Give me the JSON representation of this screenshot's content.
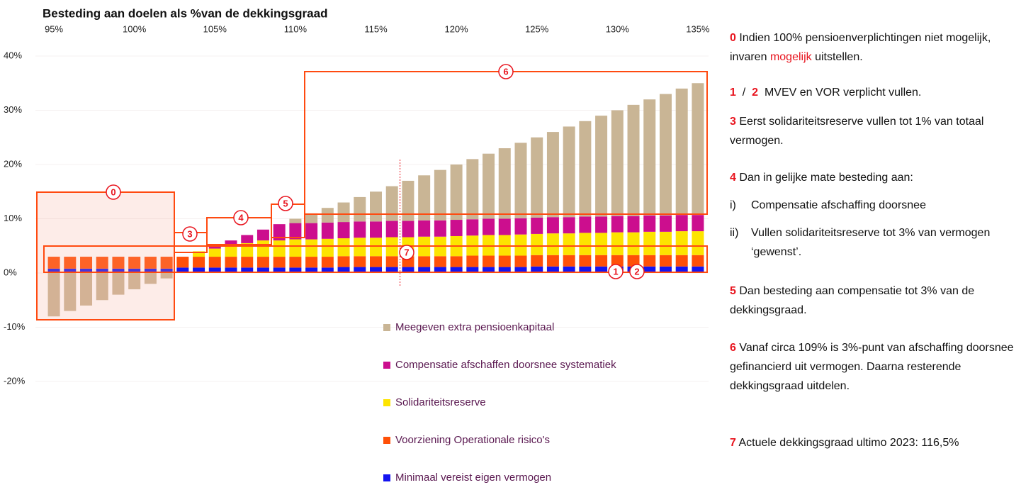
{
  "chart_data": {
    "type": "bar",
    "title": "Besteding aan doelen als %van de dekkingsgraad",
    "x": [
      95,
      96,
      97,
      98,
      99,
      100,
      101,
      102,
      103,
      104,
      105,
      106,
      107,
      108,
      109,
      110,
      111,
      112,
      113,
      114,
      115,
      116,
      117,
      118,
      119,
      120,
      121,
      122,
      123,
      124,
      125,
      126,
      127,
      128,
      129,
      130,
      131,
      132,
      133,
      134,
      135
    ],
    "xlim": [
      93.5,
      136.5
    ],
    "xticks": [
      {
        "value": 95,
        "label": "95%"
      },
      {
        "value": 100,
        "label": "100%"
      },
      {
        "value": 105,
        "label": "105%"
      },
      {
        "value": 110,
        "label": "110%"
      },
      {
        "value": 115,
        "label": "115%"
      },
      {
        "value": 120,
        "label": "120%"
      },
      {
        "value": 125,
        "label": "125%"
      },
      {
        "value": 130,
        "label": "130%"
      },
      {
        "value": 135,
        "label": "135%"
      }
    ],
    "ylim": [
      -20,
      40
    ],
    "yticks": [
      {
        "value": 40,
        "label": "40%"
      },
      {
        "value": 30,
        "label": "30%"
      },
      {
        "value": 20,
        "label": "20%"
      },
      {
        "value": 10,
        "label": "10%"
      },
      {
        "value": 0,
        "label": "0%"
      },
      {
        "value": -10,
        "label": "-10%"
      },
      {
        "value": -20,
        "label": "-20%"
      }
    ],
    "grid": true,
    "stacked": true,
    "series": [
      {
        "name": "Minimaal vereist eigen vermogen",
        "color": "#1414f0",
        "values": [
          0.8,
          0.8,
          0.8,
          0.8,
          0.8,
          0.8,
          0.8,
          0.8,
          1.0,
          1.0,
          1.0,
          1.0,
          1.0,
          1.0,
          1.0,
          1.0,
          1.0,
          1.0,
          1.1,
          1.1,
          1.1,
          1.1,
          1.1,
          1.1,
          1.1,
          1.1,
          1.1,
          1.1,
          1.1,
          1.1,
          1.2,
          1.2,
          1.2,
          1.2,
          1.2,
          1.2,
          1.2,
          1.2,
          1.2,
          1.2,
          1.2
        ]
      },
      {
        "name": "Voorziening Operationale risico's",
        "color": "#ff5008",
        "values": [
          2.2,
          2.2,
          2.2,
          2.2,
          2.2,
          2.2,
          2.2,
          2.2,
          2.0,
          2.0,
          2.0,
          2.0,
          2.0,
          2.0,
          2.0,
          2.0,
          2.0,
          2.0,
          2.0,
          2.0,
          2.0,
          2.0,
          2.0,
          2.0,
          2.0,
          2.0,
          2.1,
          2.1,
          2.1,
          2.1,
          2.1,
          2.1,
          2.1,
          2.1,
          2.1,
          2.1,
          2.1,
          2.1,
          2.1,
          2.1,
          2.1
        ]
      },
      {
        "name": "Solidariteitsreserve",
        "color": "#fde400",
        "values": [
          0,
          0,
          0,
          0,
          0,
          0,
          0,
          0,
          0,
          1,
          1.5,
          2,
          2.5,
          3,
          3,
          3.2,
          3.2,
          3.3,
          3.3,
          3.4,
          3.4,
          3.5,
          3.5,
          3.6,
          3.6,
          3.7,
          3.7,
          3.8,
          3.8,
          3.9,
          3.9,
          4.0,
          4.0,
          4.1,
          4.1,
          4.2,
          4.2,
          4.3,
          4.3,
          4.4,
          4.4
        ]
      },
      {
        "name": "Compensatie afschaffen doorsnee systematiek",
        "color": "#cc0e8e",
        "values": [
          0,
          0,
          0,
          0,
          0,
          0,
          0,
          0,
          0,
          0,
          0.5,
          1,
          1.5,
          2,
          3,
          3,
          3,
          3,
          3,
          3,
          3,
          3,
          3,
          3,
          3,
          3,
          3,
          3,
          3,
          3,
          3,
          3,
          3,
          3,
          3,
          3,
          3,
          3,
          3,
          3,
          3
        ]
      },
      {
        "name": "Meegeven extra pensioenkapitaal",
        "color": "#c9b595",
        "values": [
          -8,
          -7,
          -6,
          -5,
          -4,
          -3,
          -2,
          -1,
          0,
          0,
          0,
          0,
          0,
          0,
          0,
          0.8,
          1.8,
          2.7,
          3.6,
          4.5,
          5.5,
          6.4,
          7.4,
          8.3,
          9.3,
          10.2,
          11.1,
          12.0,
          13.0,
          13.9,
          14.8,
          15.7,
          16.7,
          17.6,
          18.6,
          19.5,
          20.5,
          21.4,
          22.4,
          23.3,
          24.3
        ]
      }
    ],
    "reference_line": {
      "x": 116.5,
      "color": "#e8141e"
    },
    "annotations": [
      "0",
      "3",
      "4",
      "5",
      "6",
      "7",
      "1",
      "2"
    ]
  },
  "notes": [
    {
      "marker": "0",
      "text": "Indien 100% pensioenverplichtingen niet mogelijk, invaren",
      "highlight": "mogelijk",
      "text_after": "uitstellen."
    },
    {
      "marker": "1",
      "separator": "/",
      "marker2": "2",
      "text": "MVEV en VOR verplicht vullen."
    },
    {
      "marker": "3",
      "text": "Eerst solidariteitsreserve vullen tot 1% van totaal vermogen."
    },
    {
      "marker": "4",
      "text": "Dan in gelijke mate besteding aan:"
    },
    {
      "marker": "i)",
      "text": "Compensatie afschaffing doorsnee"
    },
    {
      "marker": "ii)",
      "text": "Vullen solidariteitsreserve tot 3% van vermogen ‘gewenst’."
    },
    {
      "marker": "5",
      "text": "Dan besteding aan compensatie tot 3% van de dekkingsgraad."
    },
    {
      "marker": "6",
      "text": "Vanaf circa 109% is 3%-punt van afschaffing doorsnee gefinancierd uit vermogen. Daarna resterende dekkingsgraad uitdelen."
    },
    {
      "marker": "7",
      "text": "Actuele dekkingsgraad ultimo 2023: 116,5%"
    }
  ]
}
